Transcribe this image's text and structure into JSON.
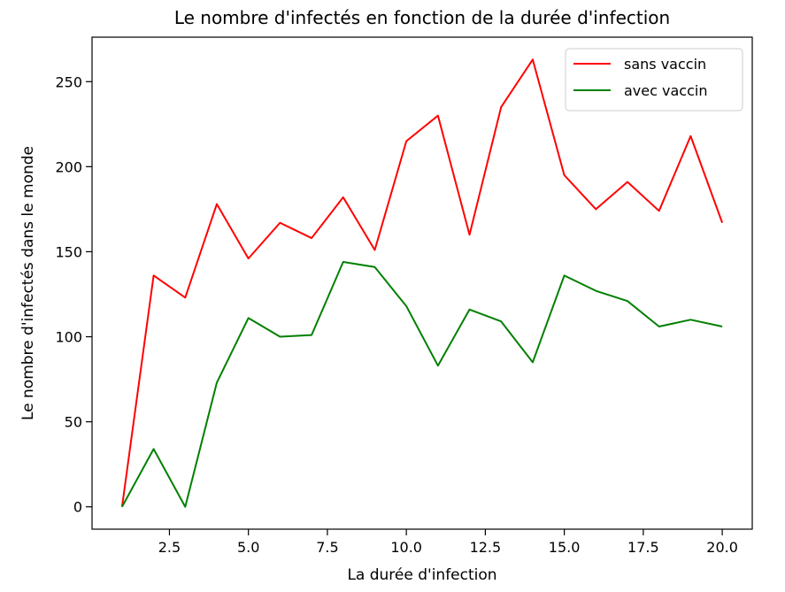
{
  "chart_data": {
    "type": "line",
    "title": "Le nombre d'infectés en fonction de la durée d'infection",
    "xlabel": "La durée d'infection",
    "ylabel": "Le nombre d'infectés dans le monde",
    "xlim": [
      0.05,
      20.95
    ],
    "ylim": [
      -13.15,
      276.15
    ],
    "x_ticks": [
      2.5,
      5.0,
      7.5,
      10.0,
      12.5,
      15.0,
      17.5,
      20.0
    ],
    "x_tick_labels": [
      "2.5",
      "5.0",
      "7.5",
      "10.0",
      "12.5",
      "15.0",
      "17.5",
      "20.0"
    ],
    "y_ticks": [
      0,
      50,
      100,
      150,
      200,
      250
    ],
    "y_tick_labels": [
      "0",
      "50",
      "100",
      "150",
      "200",
      "250"
    ],
    "grid": false,
    "legend_position": "top-right",
    "x": [
      1,
      2,
      3,
      4,
      5,
      6,
      7,
      8,
      9,
      10,
      11,
      12,
      13,
      14,
      15,
      16,
      17,
      18,
      19,
      20
    ],
    "series": [
      {
        "name": "sans vaccin",
        "color": "#ff0000",
        "values": [
          0,
          136,
          123,
          178,
          146,
          167,
          158,
          182,
          151,
          215,
          230,
          160,
          235,
          263,
          195,
          175,
          191,
          174,
          218,
          167
        ]
      },
      {
        "name": "avec vaccin",
        "color": "#008000",
        "values": [
          0,
          34,
          0,
          73,
          111,
          100,
          101,
          144,
          141,
          118,
          83,
          116,
          109,
          85,
          136,
          127,
          121,
          106,
          110,
          106
        ]
      }
    ]
  }
}
